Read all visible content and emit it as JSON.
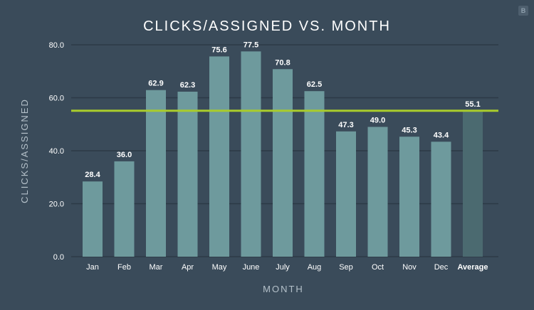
{
  "title": "CLICKS/ASSIGNED VS. MONTH",
  "badge": "B",
  "colors": {
    "background": "#3a4b5a",
    "bar": "#6e9a9d",
    "average_bar": "#4b6a70",
    "average_line": "#a9cc2c",
    "grid": "#2c3a46",
    "text": "#ffffff",
    "axis_text": "#b4c0c9"
  },
  "chart_data": {
    "type": "bar",
    "title": "CLICKS/ASSIGNED VS. MONTH",
    "xlabel": "MONTH",
    "ylabel": "CLICKS/ASSIGNED",
    "categories": [
      "Jan",
      "Feb",
      "Mar",
      "Apr",
      "May",
      "June",
      "July",
      "Aug",
      "Sep",
      "Oct",
      "Nov",
      "Dec",
      "Average"
    ],
    "values": [
      28.4,
      36.0,
      62.9,
      62.3,
      75.6,
      77.5,
      70.8,
      62.5,
      47.3,
      49.0,
      45.3,
      43.4,
      55.1
    ],
    "data_labels": [
      "28.4",
      "36.0",
      "62.9",
      "62.3",
      "75.6",
      "77.5",
      "70.8",
      "62.5",
      "47.3",
      "49.0",
      "45.3",
      "43.4",
      "55.1"
    ],
    "ylim": [
      0,
      80
    ],
    "yticks": [
      0,
      20,
      40,
      60,
      80
    ],
    "ytick_labels": [
      "0.0",
      "20.0",
      "40.0",
      "60.0",
      "80.0"
    ],
    "reference_line": 55.1,
    "grid": true,
    "legend": "none"
  }
}
